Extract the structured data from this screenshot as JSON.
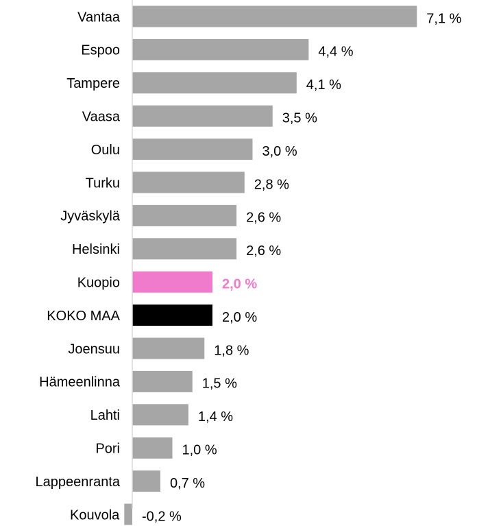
{
  "chart_data": {
    "type": "barh",
    "categories": [
      "Vantaa",
      "Espoo",
      "Tampere",
      "Vaasa",
      "Oulu",
      "Turku",
      "Jyväskylä",
      "Helsinki",
      "Kuopio",
      "KOKO MAA",
      "Joensuu",
      "Hämeenlinna",
      "Lahti",
      "Pori",
      "Lappeenranta",
      "Kouvola"
    ],
    "values": [
      7.1,
      4.4,
      4.1,
      3.5,
      3.0,
      2.8,
      2.6,
      2.6,
      2.0,
      2.0,
      1.8,
      1.5,
      1.4,
      1.0,
      0.7,
      -0.2
    ],
    "value_labels": [
      "7,1 %",
      "4,4 %",
      "4,1 %",
      "3,5 %",
      "3,0 %",
      "2,8 %",
      "2,6 %",
      "2,6 %",
      "2,0 %",
      "2,0 %",
      "1,8 %",
      "1,5 %",
      "1,4 %",
      "1,0 %",
      "0,7 %",
      "-0,2 %"
    ],
    "colors": [
      "#a6a6a6",
      "#a6a6a6",
      "#a6a6a6",
      "#a6a6a6",
      "#a6a6a6",
      "#a6a6a6",
      "#a6a6a6",
      "#a6a6a6",
      "#f07acb",
      "#000000",
      "#a6a6a6",
      "#a6a6a6",
      "#a6a6a6",
      "#a6a6a6",
      "#a6a6a6",
      "#a6a6a6"
    ],
    "highlight_color": "#f07acb",
    "xlim": [
      -3.3,
      8.6
    ]
  }
}
